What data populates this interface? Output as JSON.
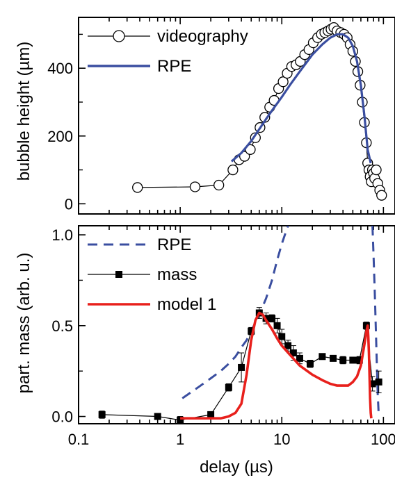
{
  "chart_data": [
    {
      "type": "line",
      "xscale": "log",
      "xlim": [
        0.1,
        130
      ],
      "ylim": [
        -30,
        550
      ],
      "ylabel": "bubble height (µm)",
      "yticks": [
        0,
        200,
        400
      ],
      "legend_position": "top-left",
      "colors": {
        "videography": "#000000",
        "rpe": "#3a4ea0"
      },
      "series": [
        {
          "name": "videography",
          "style": "line-open-circles",
          "x": [
            0.38,
            1.4,
            2.4,
            3.3,
            3.8,
            4.3,
            4.9,
            5.5,
            6.1,
            6.8,
            7.6,
            8.4,
            9.3,
            10.3,
            11.3,
            12.5,
            13.8,
            15.2,
            16.8,
            18.5,
            20.4,
            22.5,
            24.5,
            26.5,
            28.5,
            30.5,
            32.5,
            35,
            38,
            41,
            44,
            47,
            50,
            53,
            56,
            59,
            62,
            65,
            68,
            70,
            72,
            74,
            76,
            78,
            80,
            82,
            85,
            88,
            92,
            96
          ],
          "y": [
            48,
            50,
            55,
            100,
            130,
            140,
            160,
            195,
            225,
            255,
            285,
            305,
            340,
            360,
            385,
            405,
            410,
            420,
            440,
            455,
            475,
            490,
            500,
            505,
            510,
            515,
            520,
            510,
            505,
            500,
            490,
            470,
            450,
            420,
            390,
            350,
            300,
            240,
            180,
            120,
            100,
            80,
            65,
            100,
            90,
            75,
            100,
            60,
            40,
            25
          ]
        },
        {
          "name": "RPE",
          "style": "solid",
          "x": [
            3.2,
            4,
            5,
            6,
            7,
            8,
            10,
            12,
            15,
            20,
            25,
            30,
            35,
            40,
            45,
            50,
            55,
            60,
            65,
            70,
            75
          ],
          "y": [
            125,
            150,
            185,
            220,
            250,
            275,
            315,
            350,
            390,
            440,
            470,
            490,
            500,
            500,
            490,
            465,
            420,
            350,
            260,
            160,
            120
          ]
        }
      ]
    },
    {
      "type": "line",
      "xscale": "log",
      "xlim": [
        0.1,
        130
      ],
      "ylim": [
        -0.04,
        1.05
      ],
      "xlabel": "delay (µs)",
      "ylabel": "part. mass (arb. u.)",
      "yticks": [
        0.0,
        0.5,
        1.0
      ],
      "yticklabels": [
        "0.0",
        "0.5",
        "1.0"
      ],
      "xticks": [
        0.1,
        1,
        10,
        100
      ],
      "xticklabels": [
        "0.1",
        "1",
        "10",
        "100"
      ],
      "legend_position": "top-left",
      "colors": {
        "rpe": "#3a4ea0",
        "mass": "#000000",
        "model": "#e8201c"
      },
      "series": [
        {
          "name": "RPE",
          "style": "dashed",
          "segments": [
            {
              "x": [
                1.05,
                1.5,
                2,
                2.5,
                3,
                3.5,
                4,
                4.5,
                5,
                6,
                7,
                8,
                9,
                10,
                11.5
              ],
              "y": [
                0.1,
                0.16,
                0.21,
                0.25,
                0.29,
                0.33,
                0.38,
                0.42,
                0.47,
                0.56,
                0.65,
                0.75,
                0.86,
                0.95,
                1.05
              ]
            },
            {
              "x": [
                78,
                80,
                82,
                84,
                86,
                88,
                90
              ],
              "y": [
                1.05,
                0.88,
                0.7,
                0.5,
                0.3,
                0.12,
                0.0
              ]
            }
          ]
        },
        {
          "name": "mass",
          "style": "line-filled-squares-errorbars",
          "x": [
            0.17,
            0.6,
            1.0,
            2.0,
            3.0,
            4.0,
            5.0,
            6.0,
            7.0,
            8.0,
            9.0,
            10.0,
            11.5,
            13.0,
            15.0,
            19.0,
            25.0,
            32.0,
            40.0,
            50.0,
            58.0,
            68.0,
            78.0,
            90.0
          ],
          "y": [
            0.01,
            0.0,
            -0.02,
            0.01,
            0.16,
            0.27,
            0.47,
            0.57,
            0.54,
            0.54,
            0.5,
            0.44,
            0.39,
            0.35,
            0.32,
            0.29,
            0.33,
            0.32,
            0.31,
            0.31,
            0.31,
            0.5,
            0.18,
            0.19
          ],
          "err": [
            0.02,
            0.0,
            0.02,
            0.0,
            0.02,
            0.08,
            0.02,
            0.03,
            0.03,
            0.02,
            0.04,
            0.04,
            0.03,
            0.04,
            0.03,
            0.02,
            0.0,
            0.0,
            0.02,
            0.0,
            0.02,
            0.02,
            0.04,
            0.06
          ]
        },
        {
          "name": "model 1",
          "style": "solid",
          "x": [
            1,
            2,
            2.5,
            3,
            3.5,
            4,
            4.5,
            5,
            5.5,
            6,
            6.5,
            7,
            8,
            9,
            10,
            12,
            15,
            20,
            25,
            30,
            35,
            40,
            45,
            50,
            55,
            60,
            63,
            66,
            68,
            70,
            71,
            72,
            73,
            74,
            75,
            76
          ],
          "y": [
            -0.01,
            -0.01,
            -0.01,
            0.0,
            0.02,
            0.07,
            0.23,
            0.42,
            0.53,
            0.57,
            0.56,
            0.53,
            0.48,
            0.43,
            0.39,
            0.34,
            0.28,
            0.23,
            0.2,
            0.18,
            0.17,
            0.17,
            0.17,
            0.19,
            0.22,
            0.28,
            0.35,
            0.42,
            0.47,
            0.5,
            0.44,
            0.35,
            0.22,
            0.1,
            0.02,
            -0.01
          ]
        }
      ]
    }
  ]
}
